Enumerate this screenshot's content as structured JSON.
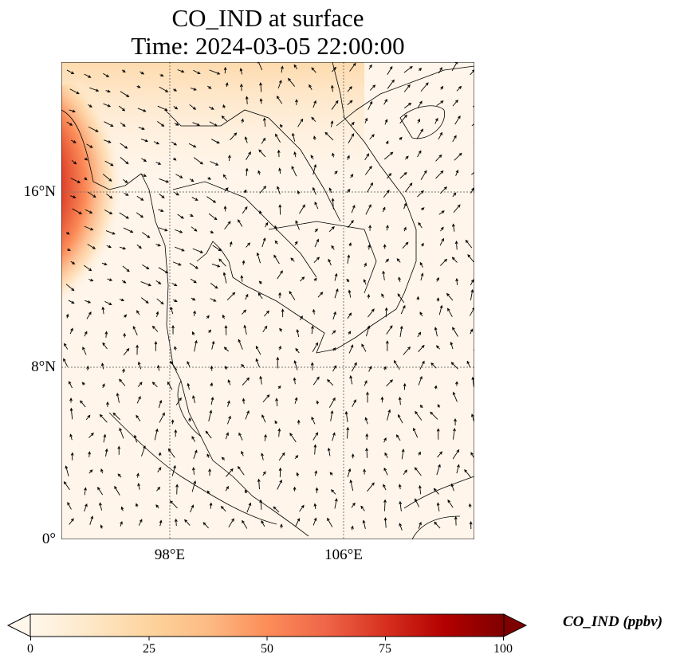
{
  "title": {
    "line1": "CO_IND at surface",
    "line2": "Time: 2024-03-05 22:00:00"
  },
  "map": {
    "extent": {
      "lon": [
        93,
        112
      ],
      "lat": [
        0,
        22
      ]
    },
    "lat_ticks": [
      {
        "value": 16,
        "label": "16°N"
      },
      {
        "value": 8,
        "label": "8°N"
      },
      {
        "value": 0,
        "label": "0°"
      }
    ],
    "lon_ticks": [
      {
        "value": 98,
        "label": "98°E"
      },
      {
        "value": 106,
        "label": "106°E"
      }
    ],
    "gridlines": "dotted"
  },
  "colorbar": {
    "label": "CO_IND (ppbv)",
    "range": [
      0,
      100
    ],
    "extend": "both",
    "ticks": [
      "0",
      "25",
      "50",
      "75",
      "100"
    ],
    "colormap": [
      "#fff7ec",
      "#fee8c8",
      "#fdd49e",
      "#fdbb84",
      "#fc8d59",
      "#ef6548",
      "#d7301f",
      "#b30000",
      "#7f0000"
    ]
  }
}
